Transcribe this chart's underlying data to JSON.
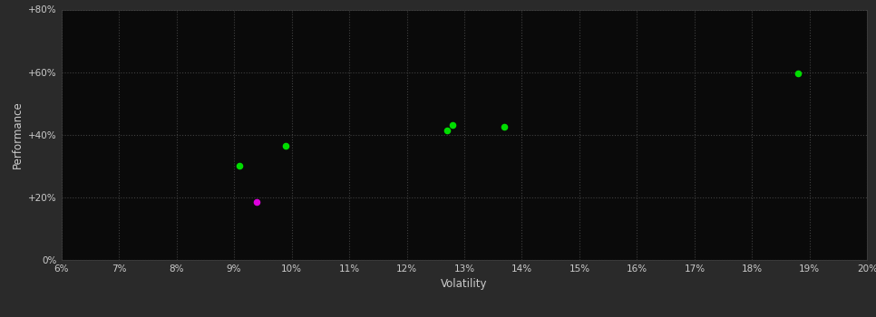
{
  "xlabel": "Volatility",
  "ylabel": "Performance",
  "background_color": "#2a2a2a",
  "plot_bg_color": "#0a0a0a",
  "grid_color": "#404040",
  "text_color": "#cccccc",
  "xlim": [
    0.06,
    0.2
  ],
  "ylim": [
    0.0,
    0.8
  ],
  "xticks": [
    0.06,
    0.07,
    0.08,
    0.09,
    0.1,
    0.11,
    0.12,
    0.13,
    0.14,
    0.15,
    0.16,
    0.17,
    0.18,
    0.19,
    0.2
  ],
  "yticks": [
    0.0,
    0.2,
    0.4,
    0.6,
    0.8
  ],
  "ytick_labels": [
    "0%",
    "+20%",
    "+40%",
    "+60%",
    "+80%"
  ],
  "xtick_labels": [
    "6%",
    "7%",
    "8%",
    "9%",
    "10%",
    "11%",
    "12%",
    "13%",
    "14%",
    "15%",
    "16%",
    "17%",
    "18%",
    "19%",
    "20%"
  ],
  "green_points": [
    [
      0.091,
      0.3
    ],
    [
      0.099,
      0.365
    ],
    [
      0.127,
      0.415
    ],
    [
      0.128,
      0.43
    ],
    [
      0.137,
      0.425
    ],
    [
      0.188,
      0.595
    ]
  ],
  "magenta_points": [
    [
      0.094,
      0.185
    ]
  ],
  "green_color": "#00dd00",
  "magenta_color": "#dd00dd",
  "point_size": 20
}
